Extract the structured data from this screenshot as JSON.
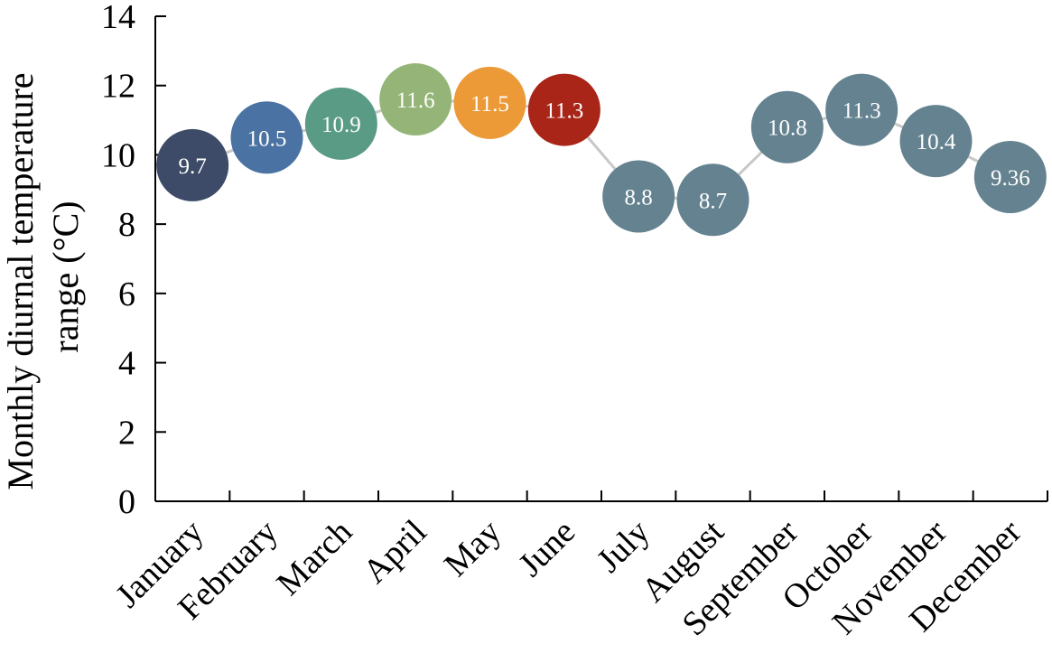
{
  "chart_data": {
    "type": "line",
    "title": "",
    "xlabel": "",
    "ylabel_lines": [
      "Monthly diurnal temperature",
      "range (°C)"
    ],
    "ylim": [
      0,
      14
    ],
    "yticks": [
      0,
      2,
      4,
      6,
      8,
      10,
      12,
      14
    ],
    "grid": false,
    "legend": "none",
    "categories": [
      "January",
      "February",
      "March",
      "April",
      "May",
      "June",
      "July",
      "August",
      "September",
      "October",
      "November",
      "December"
    ],
    "series": [
      {
        "values": [
          9.7,
          10.5,
          10.9,
          11.6,
          11.5,
          11.3,
          8.8,
          8.7,
          10.8,
          11.3,
          10.4,
          9.36
        ],
        "labels": [
          "9.7",
          "10.5",
          "10.9",
          "11.6",
          "11.5",
          "11.3",
          "8.8",
          "8.7",
          "10.8",
          "11.3",
          "10.4",
          "9.36"
        ],
        "colors": [
          "#3d4b68",
          "#4a72a2",
          "#5a9b86",
          "#95b578",
          "#eb9a37",
          "#a82518",
          "#64828f",
          "#64828f",
          "#64828f",
          "#64828f",
          "#64828f",
          "#64828f"
        ],
        "line_color": "#c8c8c8"
      }
    ]
  }
}
